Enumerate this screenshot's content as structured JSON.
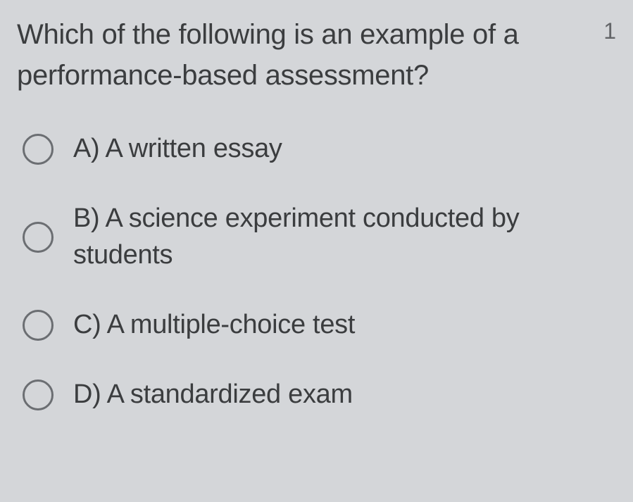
{
  "question": {
    "text": "Which of the following is an example of a performance-based assessment?",
    "number": "1"
  },
  "options": [
    {
      "label": "A) A written essay"
    },
    {
      "label": "B) A science experiment conducted by students"
    },
    {
      "label": "C) A multiple-choice test"
    },
    {
      "label": "D) A standardized exam"
    }
  ],
  "colors": {
    "background": "#d4d6d9",
    "text": "#3b3d3f",
    "number": "#636568",
    "radio_border": "#6b6e72"
  }
}
